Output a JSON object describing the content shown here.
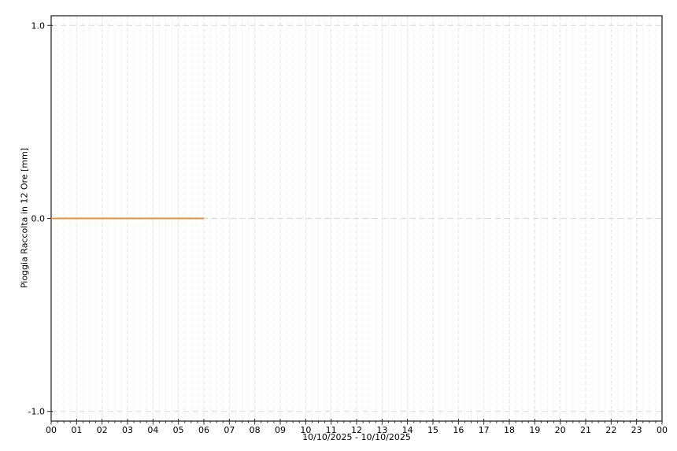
{
  "figure": {
    "background": "#ffffff",
    "axis_color": "#2a2a2a",
    "text_color": "#000000"
  },
  "chart_data": {
    "type": "line",
    "title": "",
    "ylabel": "Pioggia Raccolta in 12 Ore [mm]",
    "xlabel": "10/10/2025 - 10/10/2025",
    "xlim": [
      0,
      24
    ],
    "ylim": [
      -1.05,
      1.05
    ],
    "x_tick_values": [
      0,
      1,
      2,
      3,
      4,
      5,
      6,
      7,
      8,
      9,
      10,
      11,
      12,
      13,
      14,
      15,
      16,
      17,
      18,
      19,
      20,
      21,
      22,
      23,
      24
    ],
    "x_tick_labels": [
      "00",
      "01",
      "02",
      "03",
      "04",
      "05",
      "06",
      "07",
      "08",
      "09",
      "10",
      "11",
      "12",
      "13",
      "14",
      "15",
      "16",
      "17",
      "18",
      "19",
      "20",
      "21",
      "22",
      "23",
      "00"
    ],
    "y_ticks": [
      {
        "label": "1.0",
        "value": 1.0
      },
      {
        "label": "0.0",
        "value": 0.0
      },
      {
        "label": "-1.0",
        "value": -1.0
      }
    ],
    "grid": {
      "style": "dashed",
      "minor_x_step_hours": 0.25,
      "major_vertical_color": "#e3e3e3",
      "minor_vertical_color": "#f1f1f1",
      "horizontal_color": "#d9d9d9"
    },
    "legend": "none",
    "series": [
      {
        "name": "pioggia-raccolta-12h",
        "color": "#E8913E",
        "line_width": 2,
        "points": [
          [
            0,
            0.0
          ],
          [
            6,
            0.0
          ]
        ]
      }
    ]
  }
}
